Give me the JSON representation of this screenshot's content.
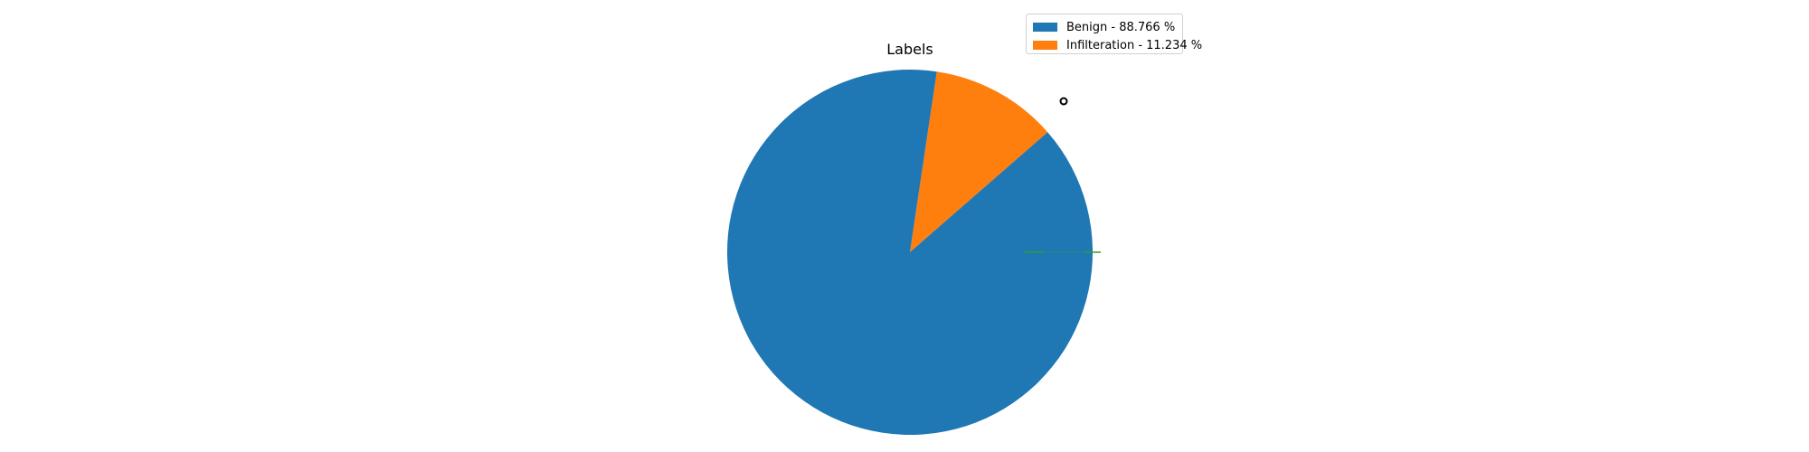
{
  "chart_data": {
    "type": "pie",
    "title": "Labels",
    "slices": [
      {
        "label": "Benign - 88.766 %",
        "value": 88.766,
        "color": "#1f77b4"
      },
      {
        "label": "Infilteration - 11.234 %",
        "value": 11.234,
        "color": "#ff7f0e"
      }
    ],
    "legend_position": "top-right",
    "other_series": [
      {
        "type": "line",
        "color": "#2ca02c"
      }
    ]
  }
}
